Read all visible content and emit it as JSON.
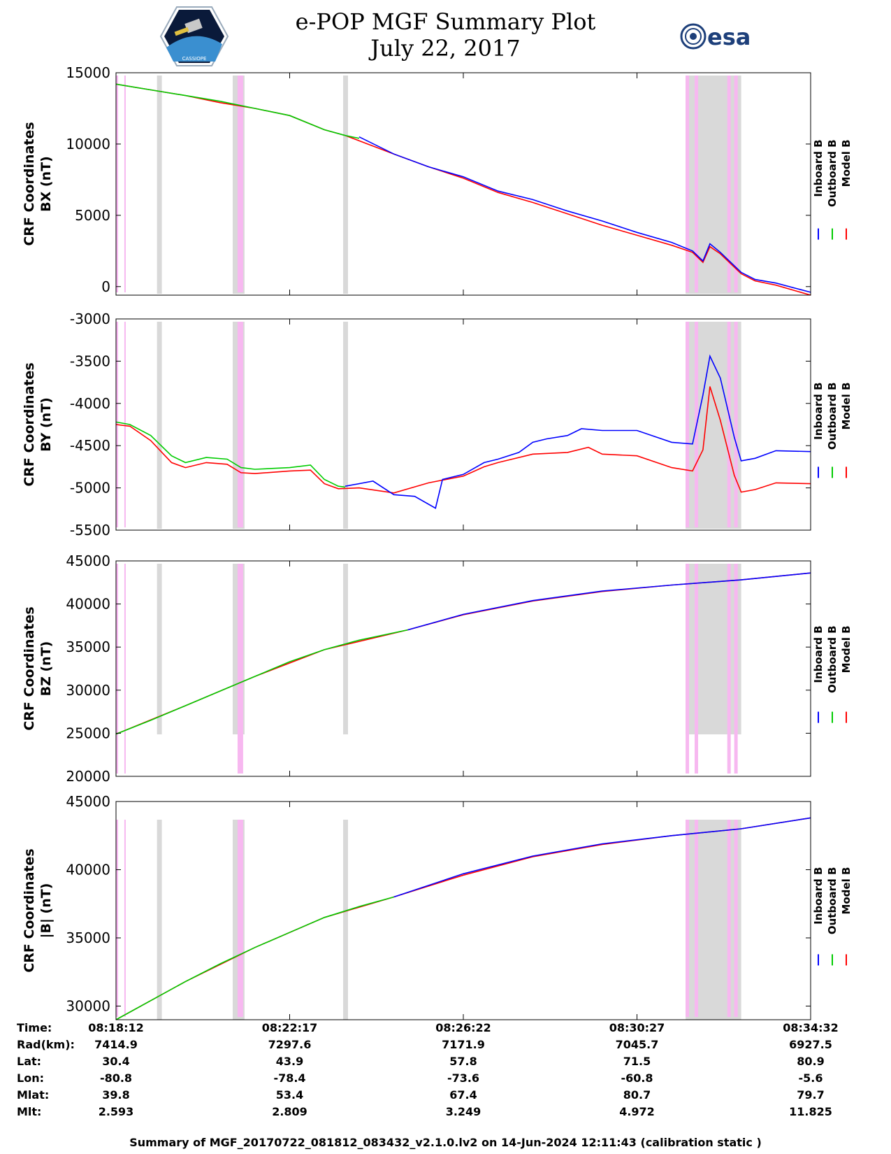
{
  "header": {
    "title_line1": "e-POP MGF Summary Plot",
    "title_line2": "July 22, 2017",
    "left_logo_text": "CASSIOPE",
    "right_logo_text": "esa"
  },
  "colors": {
    "inboard": "#0000ff",
    "outboard": "#00cc00",
    "model": "#ff0000",
    "grey_band": "#d9d9d9",
    "pink_band": "#f7b8f0"
  },
  "legend": {
    "labels": [
      "Inboard B",
      "Outboard B",
      "Model B"
    ]
  },
  "chart_data": [
    {
      "type": "line",
      "ylabel_line1": "CRF Coordinates",
      "ylabel_line2": "BX (nT)",
      "ylim": [
        -600,
        15000
      ],
      "yticks": [
        0,
        5000,
        10000,
        15000
      ],
      "ytick_labels": [
        "0",
        "5000",
        "10000",
        "15000"
      ],
      "series": [
        {
          "name": "Inboard B",
          "x": [
            0.35,
            0.4,
            0.45,
            0.5,
            0.55,
            0.6,
            0.65,
            0.7,
            0.75,
            0.8,
            0.83,
            0.845,
            0.855,
            0.87,
            0.9,
            0.92,
            0.95,
            1.0
          ],
          "y": [
            10500,
            9300,
            8400,
            7700,
            6700,
            6100,
            5300,
            4600,
            3800,
            3100,
            2500,
            1800,
            3000,
            2400,
            1000,
            500,
            250,
            -400
          ]
        },
        {
          "name": "Outboard B",
          "x": [
            0.0,
            0.05,
            0.1,
            0.15,
            0.2,
            0.25,
            0.3,
            0.33,
            0.35
          ],
          "y": [
            14200,
            13800,
            13400,
            13000,
            12500,
            12000,
            11000,
            10600,
            10400
          ]
        },
        {
          "name": "Model B",
          "x": [
            0.0,
            0.05,
            0.1,
            0.15,
            0.2,
            0.25,
            0.3,
            0.33,
            0.4,
            0.45,
            0.5,
            0.55,
            0.6,
            0.65,
            0.7,
            0.75,
            0.8,
            0.83,
            0.845,
            0.855,
            0.87,
            0.9,
            0.92,
            0.95,
            1.0
          ],
          "y": [
            14200,
            13800,
            13400,
            12900,
            12500,
            12000,
            11000,
            10600,
            9300,
            8400,
            7600,
            6600,
            5900,
            5100,
            4300,
            3600,
            2900,
            2400,
            1700,
            2800,
            2300,
            900,
            400,
            100,
            -600
          ]
        }
      ]
    },
    {
      "type": "line",
      "ylabel_line1": "CRF Coordinates",
      "ylabel_line2": "BY (nT)",
      "ylim": [
        -5500,
        -3000
      ],
      "yticks": [
        -5500,
        -5000,
        -4500,
        -4000,
        -3500,
        -3000
      ],
      "ytick_labels": [
        "-5500",
        "-5000",
        "-4500",
        "-4000",
        "-3500",
        "-3000"
      ],
      "series": [
        {
          "name": "Inboard B",
          "x": [
            0.33,
            0.37,
            0.4,
            0.43,
            0.46,
            0.47,
            0.5,
            0.53,
            0.55,
            0.58,
            0.6,
            0.62,
            0.65,
            0.67,
            0.7,
            0.75,
            0.8,
            0.83,
            0.845,
            0.855,
            0.87,
            0.89,
            0.9,
            0.92,
            0.95,
            1.0
          ],
          "y": [
            -4980,
            -4920,
            -5080,
            -5100,
            -5240,
            -4900,
            -4840,
            -4700,
            -4660,
            -4580,
            -4460,
            -4420,
            -4380,
            -4300,
            -4320,
            -4320,
            -4460,
            -4480,
            -3900,
            -3440,
            -3700,
            -4400,
            -4680,
            -4650,
            -4560,
            -4570
          ]
        },
        {
          "name": "Outboard B",
          "x": [
            0.0,
            0.02,
            0.05,
            0.08,
            0.1,
            0.13,
            0.16,
            0.18,
            0.2,
            0.25,
            0.28,
            0.3,
            0.32,
            0.33
          ],
          "y": [
            -4220,
            -4250,
            -4380,
            -4620,
            -4700,
            -4640,
            -4660,
            -4760,
            -4780,
            -4760,
            -4730,
            -4900,
            -4980,
            -4990
          ]
        },
        {
          "name": "Model B",
          "x": [
            0.0,
            0.02,
            0.05,
            0.08,
            0.1,
            0.13,
            0.16,
            0.18,
            0.2,
            0.25,
            0.28,
            0.3,
            0.32,
            0.35,
            0.4,
            0.45,
            0.5,
            0.53,
            0.55,
            0.6,
            0.65,
            0.68,
            0.7,
            0.75,
            0.8,
            0.83,
            0.845,
            0.855,
            0.87,
            0.89,
            0.9,
            0.92,
            0.95,
            1.0
          ],
          "y": [
            -4250,
            -4270,
            -4440,
            -4700,
            -4760,
            -4700,
            -4720,
            -4820,
            -4830,
            -4800,
            -4790,
            -4950,
            -5010,
            -5000,
            -5060,
            -4940,
            -4860,
            -4750,
            -4700,
            -4600,
            -4580,
            -4520,
            -4600,
            -4620,
            -4760,
            -4800,
            -4550,
            -3800,
            -4200,
            -4850,
            -5050,
            -5020,
            -4940,
            -4950
          ]
        }
      ]
    },
    {
      "type": "line",
      "ylabel_line1": "CRF Coordinates",
      "ylabel_line2": "BZ (nT)",
      "ylim": [
        20000,
        45000
      ],
      "yticks": [
        20000,
        25000,
        30000,
        35000,
        40000,
        45000
      ],
      "ytick_labels": [
        "20000",
        "25000",
        "30000",
        "35000",
        "40000",
        "45000"
      ],
      "series": [
        {
          "name": "Inboard B",
          "x": [
            0.42,
            0.5,
            0.6,
            0.7,
            0.8,
            0.9,
            1.0
          ],
          "y": [
            37000,
            38800,
            40400,
            41500,
            42200,
            42800,
            43600
          ]
        },
        {
          "name": "Outboard B",
          "x": [
            0.0,
            0.05,
            0.1,
            0.15,
            0.2,
            0.25,
            0.3,
            0.35,
            0.42
          ],
          "y": [
            24900,
            26500,
            28200,
            29900,
            31600,
            33300,
            34700,
            35800,
            37000
          ]
        },
        {
          "name": "Model B",
          "x": [
            0.0,
            0.1,
            0.2,
            0.3,
            0.42,
            0.5,
            0.6,
            0.7,
            0.8,
            0.9,
            1.0
          ],
          "y": [
            24900,
            28200,
            31600,
            34700,
            37000,
            38750,
            40350,
            41450,
            42200,
            42800,
            43600
          ]
        }
      ]
    },
    {
      "type": "line",
      "ylabel_line1": "CRF Coordinates",
      "ylabel_line2": "|B| (nT)",
      "ylim": [
        29000,
        45000
      ],
      "yticks": [
        30000,
        35000,
        40000,
        45000
      ],
      "ytick_labels": [
        "30000",
        "35000",
        "40000",
        "45000"
      ],
      "series": [
        {
          "name": "Inboard B",
          "x": [
            0.4,
            0.5,
            0.6,
            0.7,
            0.8,
            0.9,
            1.0
          ],
          "y": [
            38000,
            39700,
            41000,
            41900,
            42500,
            43000,
            43800
          ]
        },
        {
          "name": "Outboard B",
          "x": [
            0.0,
            0.05,
            0.1,
            0.15,
            0.2,
            0.25,
            0.3,
            0.35,
            0.4
          ],
          "y": [
            29000,
            30400,
            31800,
            33100,
            34300,
            35400,
            36500,
            37300,
            38000
          ]
        },
        {
          "name": "Model B",
          "x": [
            0.0,
            0.1,
            0.2,
            0.3,
            0.4,
            0.5,
            0.6,
            0.7,
            0.8,
            0.9,
            1.0
          ],
          "y": [
            29000,
            31800,
            34300,
            36500,
            38000,
            39600,
            40950,
            41850,
            42500,
            43000,
            43800
          ]
        }
      ]
    }
  ],
  "bands": {
    "grey": [
      [
        0.059,
        0.066
      ],
      [
        0.168,
        0.185
      ],
      [
        0.327,
        0.334
      ],
      [
        0.82,
        0.9
      ]
    ],
    "pink": [
      [
        0.0,
        0.003
      ],
      [
        0.012,
        0.014
      ],
      [
        0.175,
        0.183
      ],
      [
        0.82,
        0.825
      ],
      [
        0.833,
        0.838
      ],
      [
        0.88,
        0.885
      ],
      [
        0.89,
        0.895
      ]
    ]
  },
  "time_axis": {
    "tick_fractions": [
      0.0,
      0.25,
      0.5,
      0.75,
      1.0
    ]
  },
  "info_table": {
    "rows": [
      {
        "label": "Time:",
        "values": [
          "08:18:12",
          "08:22:17",
          "08:26:22",
          "08:30:27",
          "08:34:32"
        ]
      },
      {
        "label": "Rad(km):",
        "values": [
          "7414.9",
          "7297.6",
          "7171.9",
          "7045.7",
          "6927.5"
        ]
      },
      {
        "label": "Lat:",
        "values": [
          "30.4",
          "43.9",
          "57.8",
          "71.5",
          "80.9"
        ]
      },
      {
        "label": "Lon:",
        "values": [
          "-80.8",
          "-78.4",
          "-73.6",
          "-60.8",
          "-5.6"
        ]
      },
      {
        "label": "Mlat:",
        "values": [
          "39.8",
          "53.4",
          "67.4",
          "80.7",
          "79.7"
        ]
      },
      {
        "label": "Mlt:",
        "values": [
          "2.593",
          "2.809",
          "3.249",
          "4.972",
          "11.825"
        ]
      }
    ]
  },
  "footer": "Summary of MGF_20170722_081812_083432_v2.1.0.lv2 on 14-Jun-2024 12:11:43 (calibration static )"
}
